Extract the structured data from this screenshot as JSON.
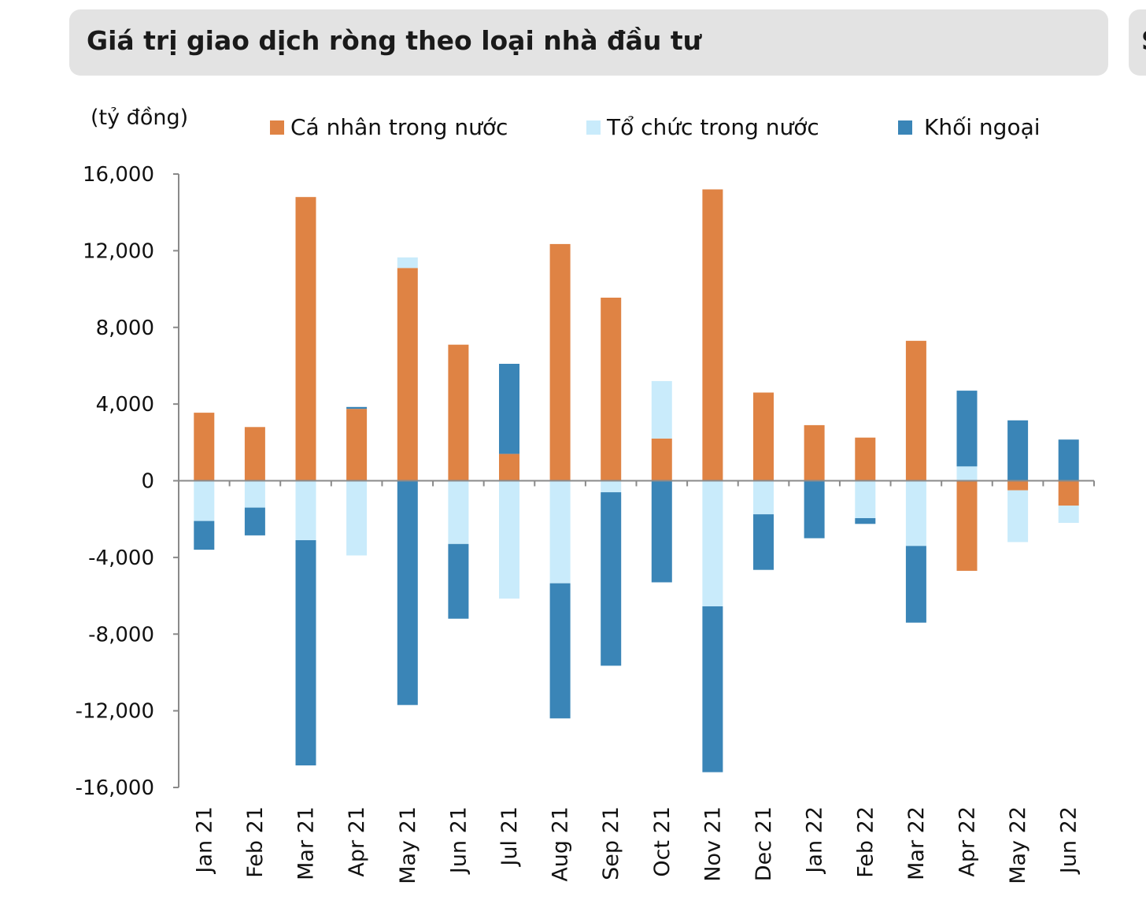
{
  "header": {
    "title": "Giá trị giao dịch ròng theo loại nhà đầu tư",
    "next_panel_title_fragment": "S"
  },
  "colors": {
    "ca_nhan": "#df8344",
    "to_chuc": "#c9ebfb",
    "khoi_ngoai": "#3a85b7",
    "axis": "#8a8a8a"
  },
  "chart_data": {
    "type": "bar",
    "stacked": true,
    "title": "Giá trị giao dịch ròng theo loại nhà đầu tư",
    "unit_label": "(tỷ đồng)",
    "xlabel": "",
    "ylabel": "(tỷ đồng)",
    "ylim": [
      -16000,
      16000
    ],
    "yticks": [
      16000,
      12000,
      8000,
      4000,
      0,
      -4000,
      -8000,
      -12000,
      -16000
    ],
    "ytick_labels": [
      "16,000",
      "12,000",
      "8,000",
      "4,000",
      "0",
      "-4,000",
      "-8,000",
      "-12,000",
      "-16,000"
    ],
    "legend_position": "top",
    "categories": [
      "Jan 21",
      "Feb 21",
      "Mar 21",
      "Apr 21",
      "May 21",
      "Jun 21",
      "Jul 21",
      "Aug 21",
      "Sep 21",
      "Oct 21",
      "Nov 21",
      "Dec 21",
      "Jan 22",
      "Feb 22",
      "Mar 22",
      "Apr 22",
      "May 22",
      "Jun 22"
    ],
    "series": [
      {
        "name": "Cá nhân trong nước",
        "color_key": "ca_nhan",
        "values": [
          3550,
          2800,
          14800,
          3750,
          11100,
          7100,
          1400,
          12350,
          9550,
          2200,
          15200,
          4600,
          2900,
          2250,
          7300,
          -4700,
          -500,
          -1300
        ]
      },
      {
        "name": "Tổ chức trong nước",
        "color_key": "to_chuc",
        "values": [
          -2100,
          -1400,
          -3100,
          -3900,
          550,
          -3300,
          -6150,
          -5350,
          -600,
          3000,
          -6550,
          -1750,
          0,
          -1950,
          -3400,
          750,
          -2700,
          -900
        ]
      },
      {
        "name": "Khối ngoại",
        "color_key": "khoi_ngoai",
        "values": [
          -1500,
          -1450,
          -11750,
          100,
          -11700,
          -3900,
          4700,
          -7050,
          -9050,
          -5300,
          -8650,
          -2900,
          -3000,
          -300,
          -4000,
          3950,
          3150,
          2150
        ]
      }
    ]
  }
}
